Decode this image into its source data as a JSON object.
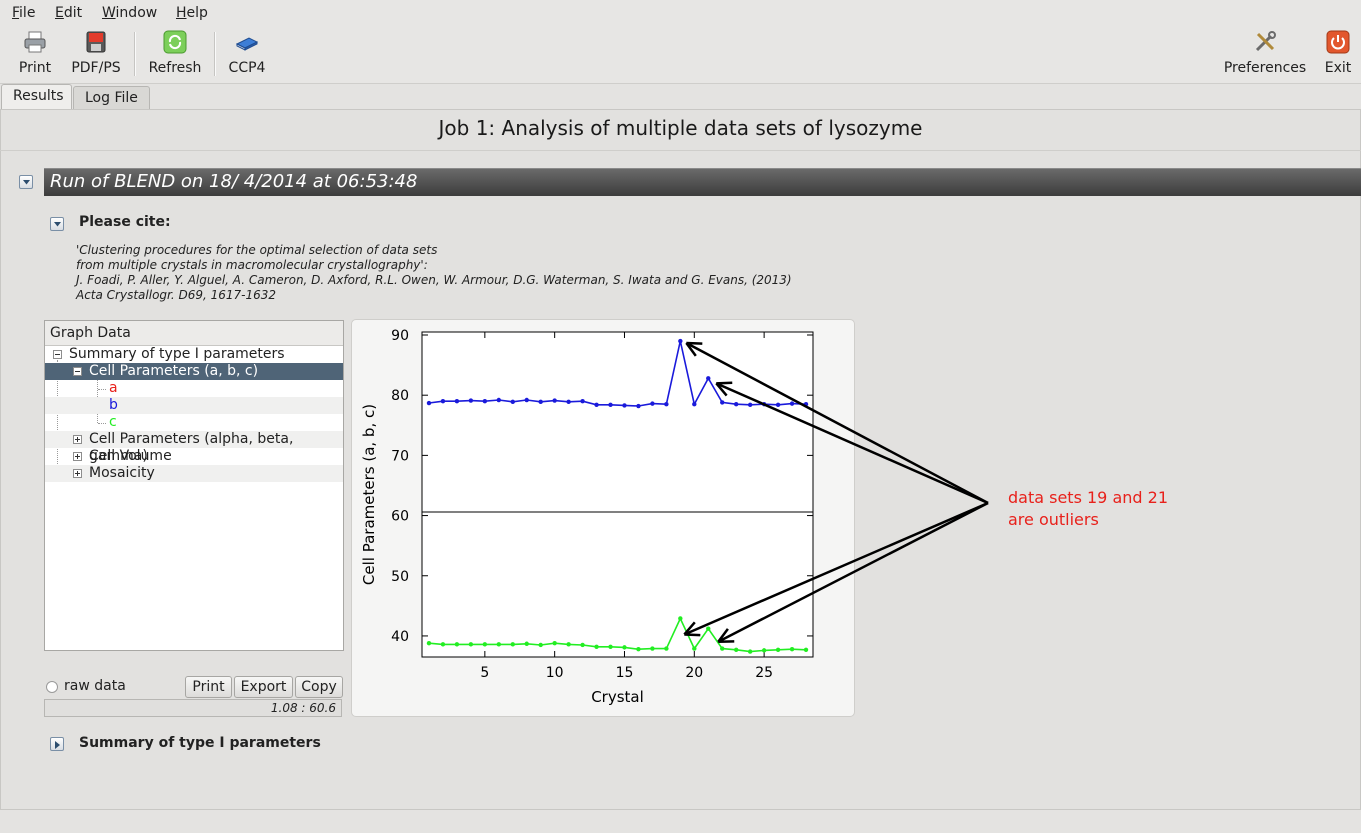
{
  "menu": [
    "File",
    "Edit",
    "Window",
    "Help"
  ],
  "toolbar": {
    "print": "Print",
    "pdf": "PDF/PS",
    "refresh": "Refresh",
    "ccp4": "CCP4",
    "preferences": "Preferences",
    "exit": "Exit"
  },
  "tabs": [
    "Results",
    "Log File"
  ],
  "job_title": "Job 1: Analysis of multiple data sets of lysozyme",
  "run_title": "Run of BLEND on 18/ 4/2014 at 06:53:48",
  "cite": {
    "heading": "Please cite:",
    "lines": [
      "'Clustering procedures for the optimal selection of data sets",
      "from multiple crystals in macromolecular crystallography':",
      "J. Foadi, P. Aller, Y. Alguel, A. Cameron, D. Axford, R.L. Owen, W. Armour, D.G. Waterman, S. Iwata and G. Evans, (2013)",
      "Acta Crystallogr. D69, 1617-1632"
    ]
  },
  "graph_tree": {
    "header": "Graph Data",
    "root": "Summary of type I parameters",
    "selected": "Cell Parameters (a, b, c)",
    "children": [
      "a",
      "b",
      "c"
    ],
    "others": [
      "Cell Parameters (alpha, beta, gamma)",
      "Cell Volume",
      "Mosaicity"
    ]
  },
  "controls": {
    "raw_data": "raw data",
    "print": "Print",
    "export": "Export",
    "copy": "Copy",
    "status": "1.08 : 60.6"
  },
  "colors": {
    "a": "#e8211b",
    "b": "#1a1adb",
    "c": "#22ee22",
    "selection": "#4f6477"
  },
  "chart_data": {
    "type": "line",
    "xlabel": "Crystal",
    "ylabel": "Cell Parameters (a, b, c)",
    "xlim": [
      0.5,
      28.5
    ],
    "ylim": [
      36.5,
      90.5
    ],
    "yticks": [
      40,
      50,
      60,
      70,
      80,
      90
    ],
    "xticks": [
      5,
      10,
      15,
      20,
      25
    ],
    "hline": 60.6,
    "x": [
      1,
      2,
      3,
      4,
      5,
      6,
      7,
      8,
      9,
      10,
      11,
      12,
      13,
      14,
      15,
      16,
      17,
      18,
      19,
      20,
      21,
      22,
      23,
      24,
      25,
      26,
      27,
      28
    ],
    "series": [
      {
        "name": "b",
        "color": "#1a1adb",
        "values": [
          78.7,
          79.0,
          79.0,
          79.1,
          79.0,
          79.2,
          78.9,
          79.2,
          78.9,
          79.1,
          78.9,
          79.0,
          78.4,
          78.4,
          78.3,
          78.2,
          78.6,
          78.5,
          89.0,
          78.5,
          82.8,
          78.8,
          78.5,
          78.4,
          78.5,
          78.4,
          78.6,
          78.5
        ]
      },
      {
        "name": "c",
        "color": "#22ee22",
        "values": [
          38.8,
          38.6,
          38.6,
          38.6,
          38.6,
          38.6,
          38.6,
          38.7,
          38.5,
          38.8,
          38.6,
          38.5,
          38.2,
          38.2,
          38.1,
          37.8,
          37.9,
          37.9,
          42.9,
          37.9,
          41.2,
          37.9,
          37.7,
          37.4,
          37.6,
          37.7,
          37.8,
          37.7
        ]
      }
    ]
  },
  "annotation": [
    "data sets 19 and 21",
    "are outliers"
  ],
  "summary_heading": "Summary of type I parameters"
}
